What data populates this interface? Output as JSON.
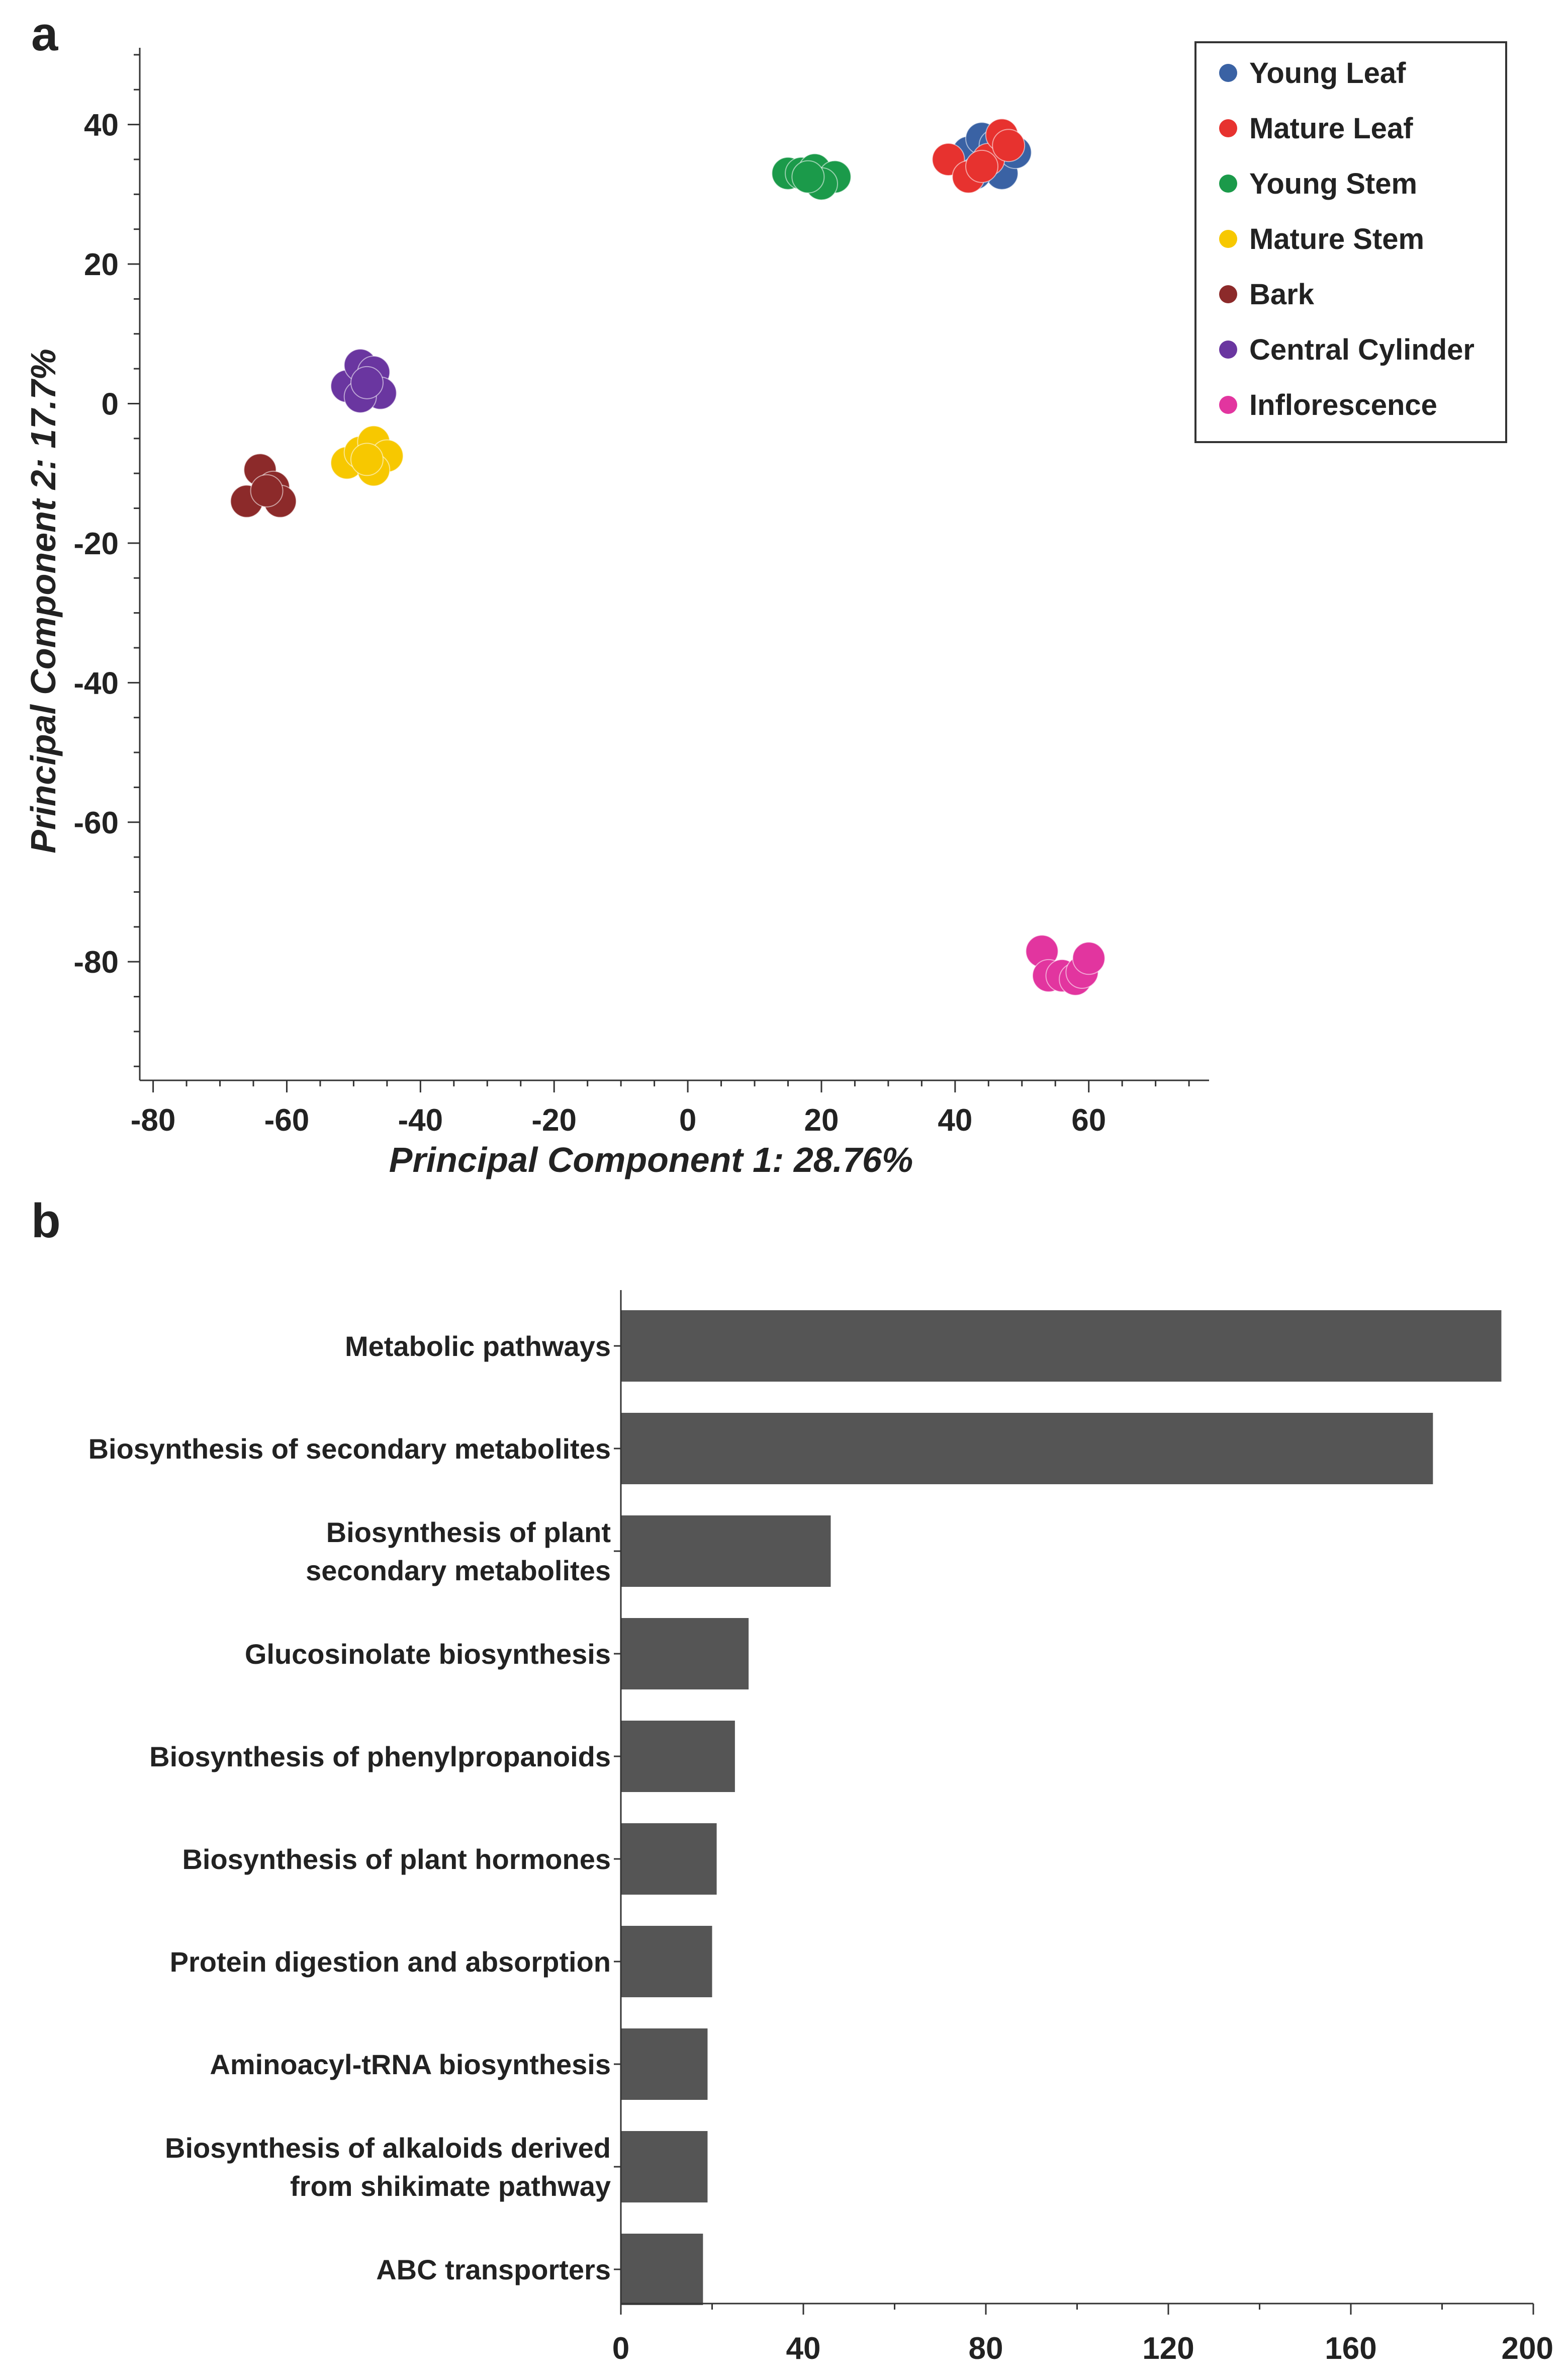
{
  "panel_labels": {
    "a": "a",
    "b": "b"
  },
  "chart_data": [
    {
      "type": "scatter",
      "title": "",
      "xlabel": "Principal Component 1: 28.76%",
      "ylabel": "Principal Component 2: 17.7%",
      "xlim": [
        -82,
        78
      ],
      "ylim": [
        -97,
        51
      ],
      "xticks": [
        -80,
        -60,
        -40,
        -20,
        0,
        20,
        40,
        60
      ],
      "yticks": [
        40,
        20,
        0,
        -20,
        -40,
        -60,
        -80
      ],
      "xtick_labels": [
        "-80",
        "-60",
        "-40",
        "-20",
        "0",
        "20",
        "40",
        "60"
      ],
      "ytick_labels": [
        "40",
        "20",
        "0",
        "-20",
        "-40",
        "-60",
        "-80"
      ],
      "legend_position": "top-right",
      "series": [
        {
          "name": "Young Leaf",
          "color": "#3a62a4",
          "points": [
            [
              42,
              36
            ],
            [
              44,
              38
            ],
            [
              47,
              33
            ],
            [
              49,
              36
            ],
            [
              43,
              33
            ],
            [
              46,
              37
            ]
          ]
        },
        {
          "name": "Mature Leaf",
          "color": "#e7322f",
          "points": [
            [
              39,
              35
            ],
            [
              42,
              32.5
            ],
            [
              45,
              35
            ],
            [
              47,
              38.5
            ],
            [
              48,
              37
            ],
            [
              44,
              34
            ]
          ]
        },
        {
          "name": "Young Stem",
          "color": "#1b9a4a",
          "points": [
            [
              15,
              33
            ],
            [
              17,
              33
            ],
            [
              19,
              33.5
            ],
            [
              22,
              32.5
            ],
            [
              20,
              31.5
            ],
            [
              18,
              32.5
            ]
          ]
        },
        {
          "name": "Mature Stem",
          "color": "#f7c800",
          "points": [
            [
              -51,
              -8.5
            ],
            [
              -49,
              -7
            ],
            [
              -47,
              -5.5
            ],
            [
              -45,
              -7.5
            ],
            [
              -47,
              -9.5
            ],
            [
              -48,
              -8
            ]
          ]
        },
        {
          "name": "Bark",
          "color": "#8c2a2a",
          "points": [
            [
              -64,
              -9.5
            ],
            [
              -62,
              -12
            ],
            [
              -66,
              -14
            ],
            [
              -61,
              -14
            ],
            [
              -63,
              -12.5
            ]
          ]
        },
        {
          "name": "Central Cylinder",
          "color": "#6a36a0",
          "points": [
            [
              -51,
              2.5
            ],
            [
              -49,
              5.5
            ],
            [
              -47,
              4.5
            ],
            [
              -46,
              1.5
            ],
            [
              -49,
              1
            ],
            [
              -48,
              3
            ]
          ]
        },
        {
          "name": "Inflorescence",
          "color": "#e2359f",
          "points": [
            [
              53,
              -78.5
            ],
            [
              54,
              -82
            ],
            [
              56,
              -82
            ],
            [
              58,
              -82.5
            ],
            [
              59,
              -81.5
            ],
            [
              60,
              -79.5
            ]
          ]
        }
      ]
    },
    {
      "type": "bar",
      "orientation": "horizontal",
      "title": "",
      "xlabel": "",
      "ylabel": "",
      "xlim": [
        0,
        200
      ],
      "xticks": [
        0,
        40,
        80,
        120,
        160,
        200
      ],
      "xtick_labels": [
        "0",
        "40",
        "80",
        "120",
        "160",
        "200"
      ],
      "bar_color": "#555555",
      "categories": [
        [
          "Metabolic pathways"
        ],
        [
          "Biosynthesis of secondary metabolites"
        ],
        [
          "Biosynthesis of plant",
          "secondary metabolites"
        ],
        [
          "Glucosinolate biosynthesis"
        ],
        [
          "Biosynthesis of phenylpropanoids"
        ],
        [
          "Biosynthesis of plant hormones"
        ],
        [
          "Protein digestion and absorption"
        ],
        [
          "Aminoacyl-tRNA biosynthesis"
        ],
        [
          "Biosynthesis of alkaloids derived",
          "from shikimate pathway"
        ],
        [
          "ABC transporters"
        ]
      ],
      "values": [
        193,
        178,
        46,
        28,
        25,
        21,
        20,
        19,
        19,
        18
      ]
    }
  ]
}
